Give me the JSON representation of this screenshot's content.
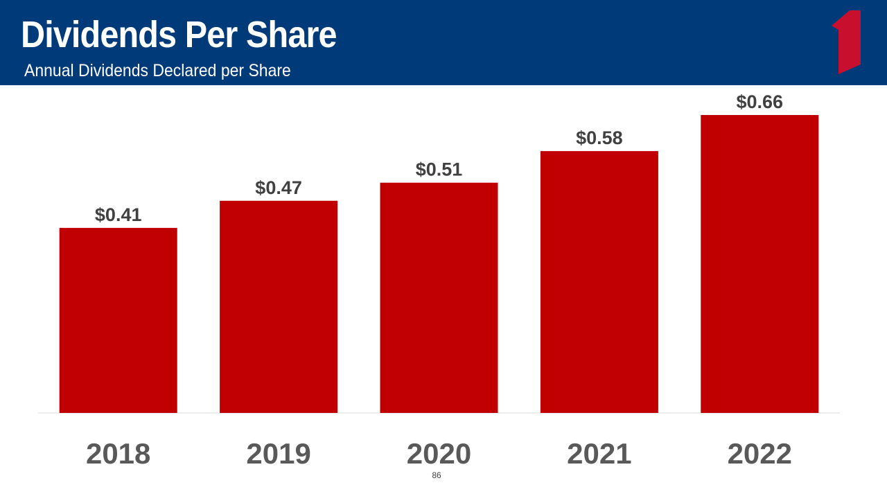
{
  "header": {
    "title": "Dividends Per Share",
    "subtitle": "Annual Dividends Declared per Share"
  },
  "colors": {
    "header_background": "#003A78",
    "bar": "#C00000",
    "logo": "#C8102E"
  },
  "logo": {
    "icon": "numeral-one-logo-icon"
  },
  "chart_data": {
    "type": "bar",
    "categories": [
      "2018",
      "2019",
      "2020",
      "2021",
      "2022"
    ],
    "values": [
      0.41,
      0.47,
      0.51,
      0.58,
      0.66
    ],
    "data_labels": [
      "$0.41",
      "$0.47",
      "$0.51",
      "$0.58",
      "$0.66"
    ],
    "title": "Annual Dividends Declared per Share",
    "xlabel": "",
    "ylabel": "",
    "ylim": [
      0,
      0.66
    ],
    "grid": false,
    "legend": "none"
  },
  "footer": {
    "page_number": "86"
  }
}
